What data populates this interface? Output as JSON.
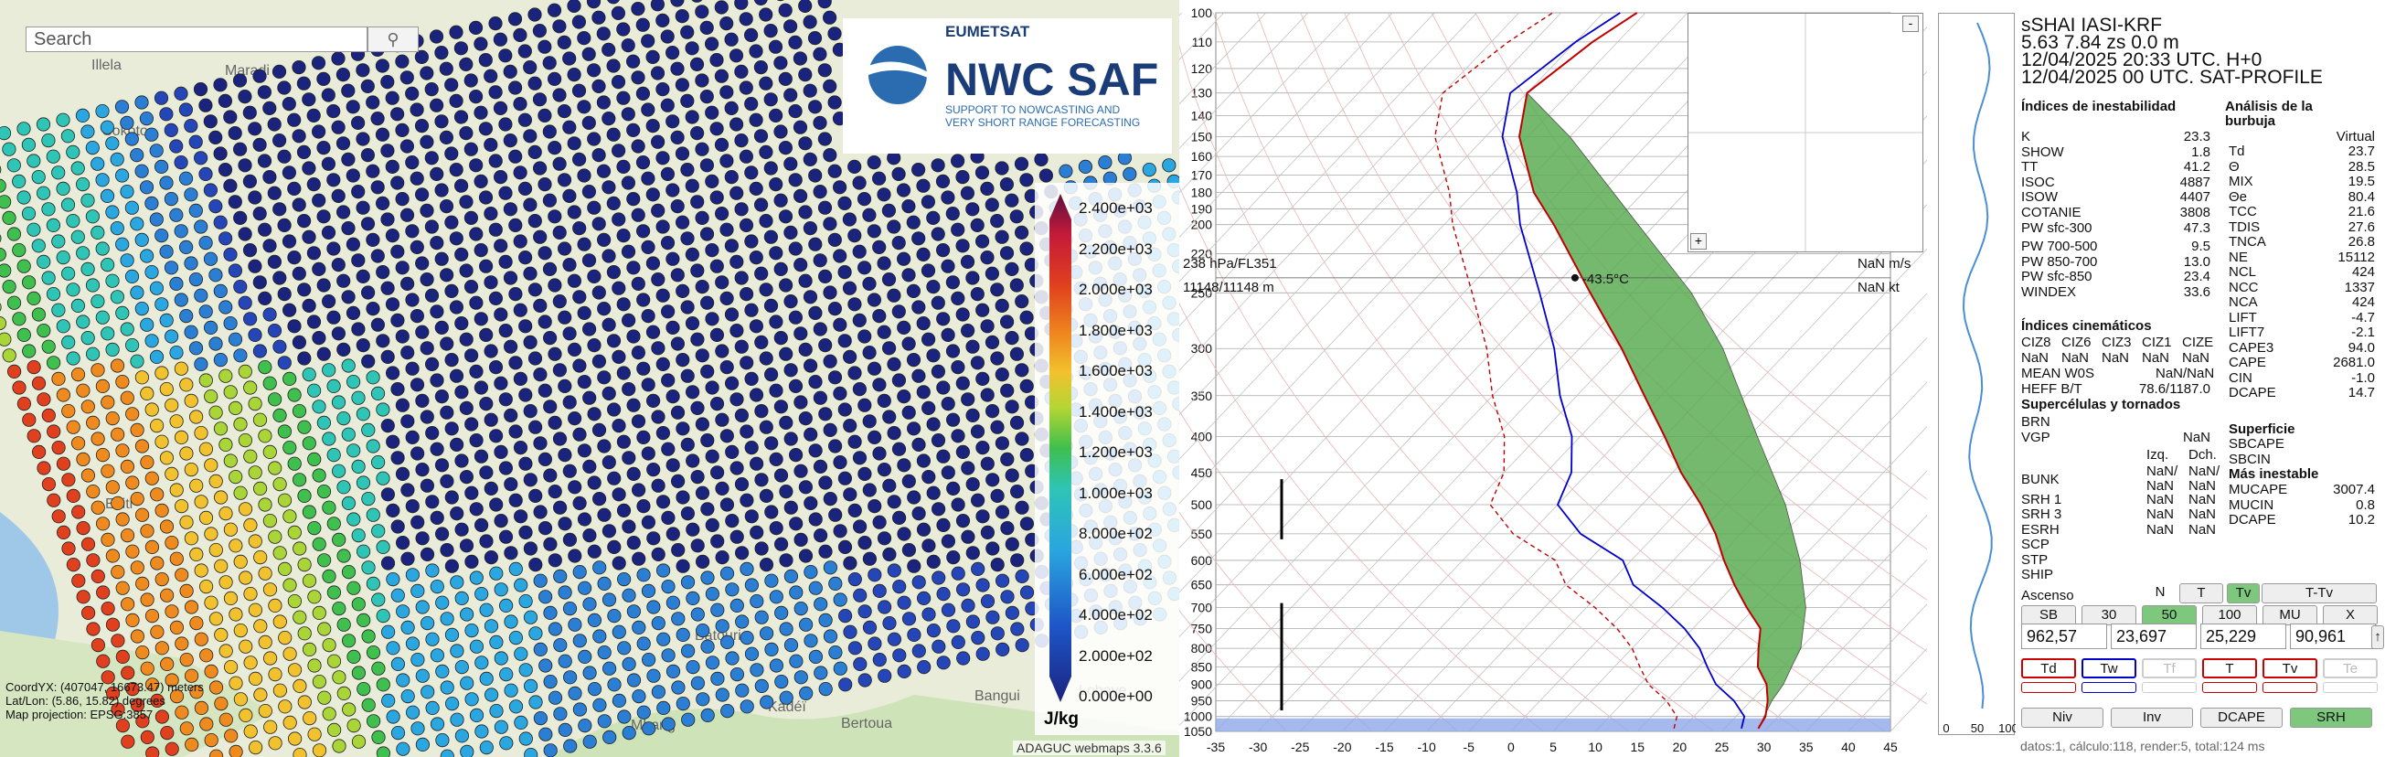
{
  "map": {
    "search_placeholder": "Search",
    "place_labels": [
      "Illela",
      "Maradi",
      "Sokoto",
      "Bangui",
      "Bertoua",
      "Mbang",
      "Kadéï",
      "Lobaye",
      "Batouri",
      "Ekiti"
    ],
    "logo_top": "EUMETSAT",
    "logo_main": "NWC SAF",
    "logo_sub1": "SUPPORT TO NOWCASTING AND",
    "logo_sub2": "VERY SHORT RANGE FORECASTING",
    "legend_labels": [
      "2.400e+03",
      "2.200e+03",
      "2.000e+03",
      "1.800e+03",
      "1.600e+03",
      "1.400e+03",
      "1.200e+03",
      "1.000e+03",
      "8.000e+02",
      "6.000e+02",
      "4.000e+02",
      "2.000e+02",
      "0.000e+00"
    ],
    "legend_unit": "J/kg",
    "coord_lines": [
      "CoordYX: (407047, 16673.47) meters",
      "Lat/Lon: (5.86, 15.82) degrees",
      "Map projection: EPSG:3857"
    ],
    "footer": "ADAGUC webmaps 3.3.6"
  },
  "skewt": {
    "pressure_labels": [
      "100",
      "110",
      "120",
      "130",
      "140",
      "150",
      "160",
      "170",
      "180",
      "190",
      "200",
      "220",
      "250",
      "300",
      "350",
      "400",
      "450",
      "500",
      "550",
      "600",
      "650",
      "700",
      "750",
      "800",
      "850",
      "900",
      "950",
      "1000",
      "1050"
    ],
    "temp_labels": [
      "-35",
      "-30",
      "-25",
      "-20",
      "-15",
      "-10",
      "-5",
      "0",
      "5",
      "10",
      "15",
      "20",
      "25",
      "30",
      "35",
      "40",
      "45"
    ],
    "readout_left1": "238 hPa/FL351",
    "readout_left2": "11148/11148 m",
    "readout_right1": "NaN m/s",
    "readout_right2": "NaN kt",
    "readout_temp": "-43.5°C",
    "inset_minus": "-",
    "inset_plus": "+"
  },
  "profile": {
    "x_labels": [
      "0",
      "50",
      "100"
    ]
  },
  "panel": {
    "header": [
      "sSHAI IASI-KRF",
      "5.63 7.84 zs 0.0 m",
      "12/04/2025 20:33 UTC. H+0",
      "12/04/2025 00 UTC. SAT-PROFILE"
    ],
    "left_title": "Índices de inestabilidad",
    "right_title": "Análisis de la burbuja",
    "virtual": "Virtual",
    "left_rows": [
      [
        "K",
        "23.3"
      ],
      [
        "SHOW",
        "1.8"
      ],
      [
        "TT",
        "41.2"
      ],
      [
        "ISOC",
        "4887"
      ],
      [
        "ISOW",
        "4407"
      ],
      [
        "COTANIE",
        "3808"
      ],
      [
        "PW sfc-300",
        "47.3"
      ],
      [
        "PW 700-500",
        "9.5"
      ],
      [
        "PW 850-700",
        "13.0"
      ],
      [
        "PW sfc-850",
        "23.4"
      ],
      [
        "WINDEX",
        "33.6"
      ]
    ],
    "right_rows": [
      [
        "Td",
        "23.7"
      ],
      [
        "Θ",
        "28.5"
      ],
      [
        "MIX",
        "19.5"
      ],
      [
        "Θe",
        "80.4"
      ],
      [
        "TCC",
        "21.6"
      ],
      [
        "TDIS",
        "27.6"
      ],
      [
        "TNCA",
        "26.8"
      ],
      [
        "NE",
        "15112"
      ],
      [
        "NCL",
        "424"
      ],
      [
        "NCC",
        "1337"
      ],
      [
        "NCA",
        "424"
      ],
      [
        "LIFT",
        "-4.7"
      ],
      [
        "LIFT7",
        "-2.1"
      ],
      [
        "CAPE3",
        "94.0"
      ],
      [
        "CAPE",
        "2681.0"
      ],
      [
        "CIN",
        "-1.0"
      ],
      [
        "DCAPE",
        "14.7"
      ]
    ],
    "kin_title": "Índices cinemáticos",
    "kin_heads": [
      "CIZ8",
      "CIZ6",
      "CIZ3",
      "CIZ1",
      "CIZE"
    ],
    "kin_vals": [
      "NaN",
      "NaN",
      "NaN",
      "NaN",
      "NaN"
    ],
    "mean_wos": [
      "MEAN W0S",
      "NaN/NaN"
    ],
    "heff": [
      "HEFF B/T",
      "78.6/1187.0"
    ],
    "sup_title": "Supercélulas y tornados",
    "sup_rows": [
      [
        "BRN",
        ""
      ],
      [
        "VGP",
        "NaN"
      ]
    ],
    "sup_sub": [
      "Izq.",
      "Dch."
    ],
    "sup_rows2": [
      [
        "BUNK",
        "NaN/ NaN",
        "NaN/ NaN"
      ],
      [
        "SRH 1",
        "NaN",
        "NaN"
      ],
      [
        "SRH 3",
        "NaN",
        "NaN"
      ],
      [
        "ESRH",
        "NaN",
        "NaN"
      ],
      [
        "SCP",
        "",
        ""
      ],
      [
        "STP",
        "",
        ""
      ],
      [
        "SHIP",
        "",
        ""
      ]
    ],
    "surf_title": "Superficie",
    "surf_rows": [
      [
        "SBCAPE",
        ""
      ],
      [
        "SBCIN",
        ""
      ]
    ],
    "mu_title": "Más inestable",
    "mu_rows": [
      [
        "MUCAPE",
        "3007.4"
      ],
      [
        "MUCIN",
        "0.8"
      ],
      [
        "DCAPE",
        "10.2"
      ]
    ],
    "ascenso": "Ascenso",
    "row1": [
      "N",
      "T",
      "Tv",
      "T-Tv"
    ],
    "row2": [
      "SB",
      "30",
      "50",
      "100",
      "MU",
      "X"
    ],
    "numbers": [
      "962,57",
      "23,697",
      "25,229",
      "90,961"
    ],
    "row3": [
      "Td",
      "Tw",
      "Tf",
      "T",
      "Tv",
      "Te"
    ],
    "row4": [
      "Niv",
      "Inv",
      "DCAPE",
      "SRH"
    ],
    "status": "datos:1, cálculo:118, render:5, total:124 ms"
  },
  "colors": {
    "cape_fill": "#5cad55",
    "temp_line": "#c00000",
    "dew_line": "#0000cc",
    "surface_band": "#8fa8e8"
  }
}
